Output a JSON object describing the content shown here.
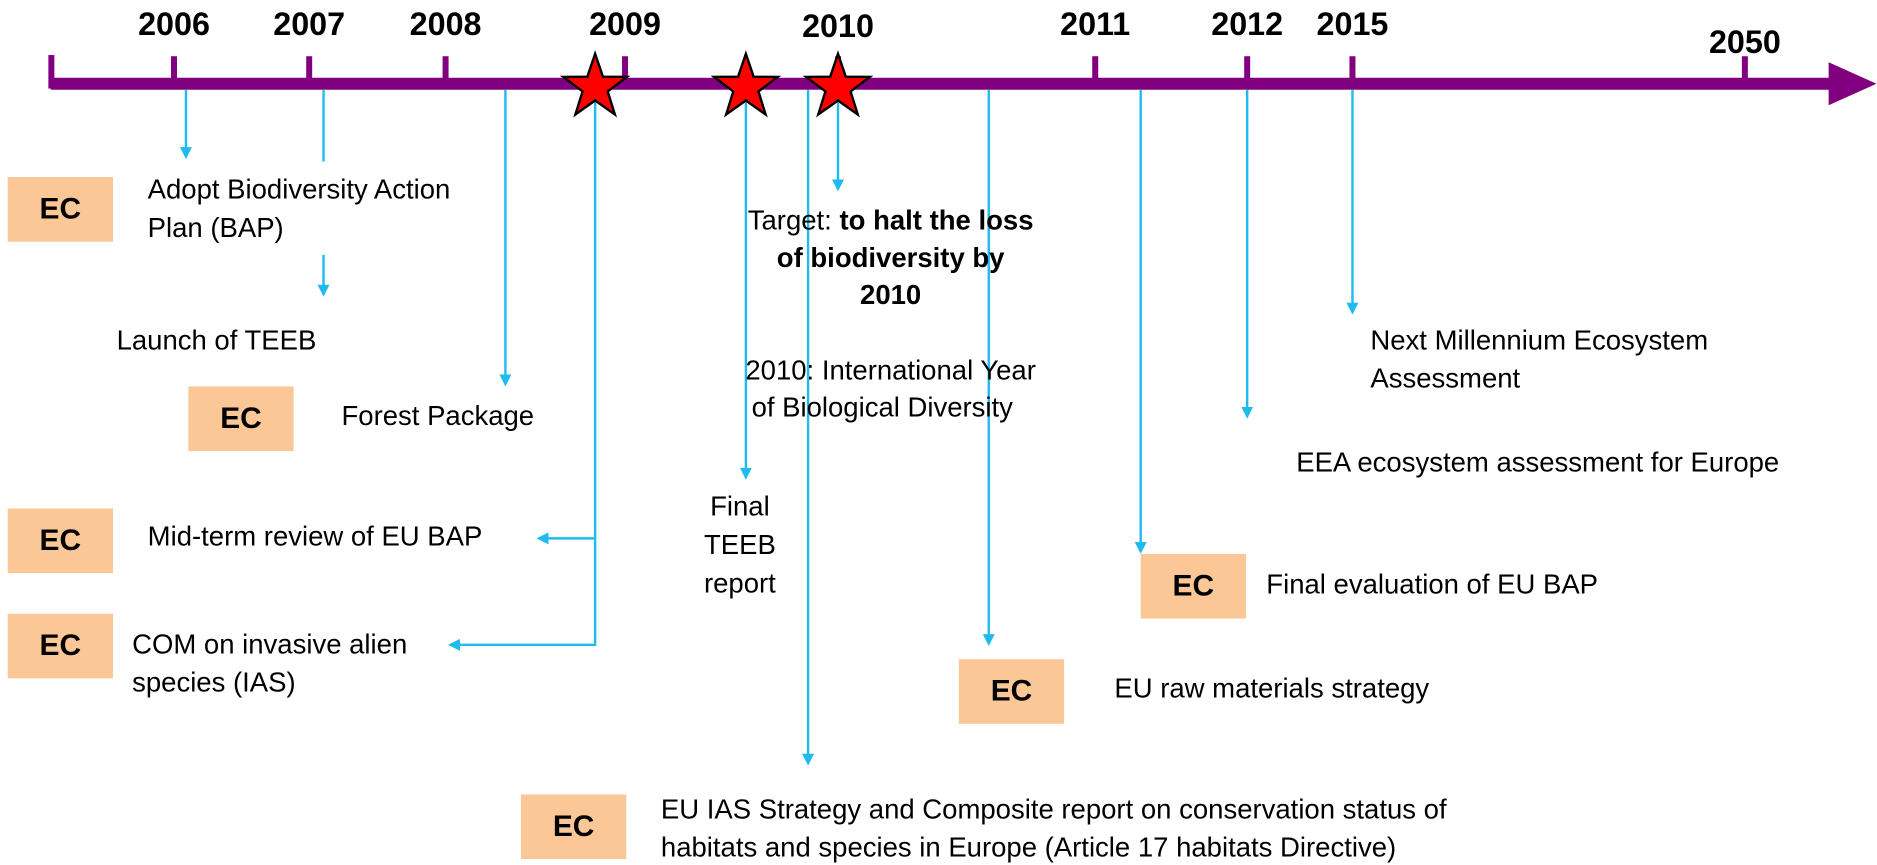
{
  "timeline": {
    "years": [
      "2006",
      "2007",
      "2008",
      "2009",
      "2010",
      "2011",
      "2012",
      "2015",
      "2050"
    ],
    "badges": [
      "EC",
      "EC",
      "EC",
      "EC",
      "EC",
      "EC",
      "EC"
    ],
    "events": {
      "bap": [
        "Adopt Biodiversity Action",
        "Plan (BAP)"
      ],
      "teeb_launch": "Launch of TEEB",
      "forest": "Forest Package",
      "midterm": "Mid-term review of EU BAP",
      "ias_com": [
        "COM on invasive alien",
        "species (IAS)"
      ],
      "target_prefix": "Target:",
      "target_bold": [
        "to halt the loss",
        "of biodiversity by",
        "2010"
      ],
      "year_2010": [
        "2010: International Year",
        "of Biological Diversity"
      ],
      "teeb_final": [
        "Final",
        "TEEB",
        "report"
      ],
      "mea": [
        "Next  Millennium Ecosystem",
        "Assessment"
      ],
      "eea": "EEA ecosystem assessment for Europe",
      "final_eval": "Final evaluation of EU BAP",
      "raw": "EU raw materials strategy",
      "ias_strategy": [
        "EU IAS Strategy and Composite report on conservation status of",
        "habitats and species in Europe (Article 17 habitats Directive)"
      ]
    }
  }
}
